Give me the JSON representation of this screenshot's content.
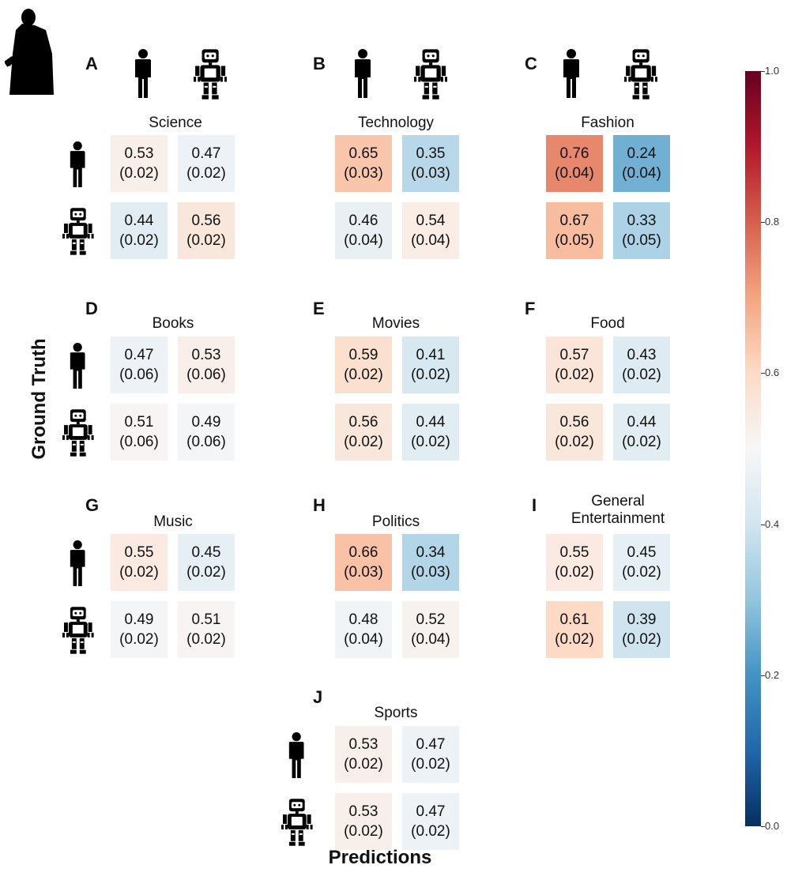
{
  "chart_data": {
    "type": "heatmap",
    "ylabel": "Ground Truth",
    "xlabel": "Predictions",
    "row_labels": [
      "human-icon",
      "robot-icon"
    ],
    "col_labels": [
      "human-icon",
      "robot-icon"
    ],
    "colorbar": {
      "colormap": "RdBu_r",
      "range": [
        0.0,
        1.0
      ],
      "ticks": [
        "0.0",
        "0.2",
        "0.4",
        "0.6",
        "0.8",
        "1.0"
      ]
    },
    "panels": [
      {
        "letter": "A",
        "title": "Science",
        "values": [
          [
            0.53,
            0.47
          ],
          [
            0.44,
            0.56
          ]
        ],
        "labels": [
          [
            "0.53",
            "0.47"
          ],
          [
            "0.44",
            "0.56"
          ]
        ],
        "errors": [
          [
            "(0.02)",
            "(0.02)"
          ],
          [
            "(0.02)",
            "(0.02)"
          ]
        ]
      },
      {
        "letter": "B",
        "title": "Technology",
        "values": [
          [
            0.65,
            0.35
          ],
          [
            0.46,
            0.54
          ]
        ],
        "labels": [
          [
            "0.65",
            "0.35"
          ],
          [
            "0.46",
            "0.54"
          ]
        ],
        "errors": [
          [
            "(0.03)",
            "(0.03)"
          ],
          [
            "(0.04)",
            "(0.04)"
          ]
        ]
      },
      {
        "letter": "C",
        "title": "Fashion",
        "values": [
          [
            0.76,
            0.24
          ],
          [
            0.67,
            0.33
          ]
        ],
        "labels": [
          [
            "0.76",
            "0.24"
          ],
          [
            "0.67",
            "0.33"
          ]
        ],
        "errors": [
          [
            "(0.04)",
            "(0.04)"
          ],
          [
            "(0.05)",
            "(0.05)"
          ]
        ]
      },
      {
        "letter": "D",
        "title": "Books",
        "values": [
          [
            0.47,
            0.53
          ],
          [
            0.51,
            0.49
          ]
        ],
        "labels": [
          [
            "0.47",
            "0.53"
          ],
          [
            "0.51",
            "0.49"
          ]
        ],
        "errors": [
          [
            "(0.06)",
            "(0.06)"
          ],
          [
            "(0.06)",
            "(0.06)"
          ]
        ]
      },
      {
        "letter": "E",
        "title": "Movies",
        "values": [
          [
            0.59,
            0.41
          ],
          [
            0.56,
            0.44
          ]
        ],
        "labels": [
          [
            "0.59",
            "0.41"
          ],
          [
            "0.56",
            "0.44"
          ]
        ],
        "errors": [
          [
            "(0.02)",
            "(0.02)"
          ],
          [
            "(0.02)",
            "(0.02)"
          ]
        ]
      },
      {
        "letter": "F",
        "title": "Food",
        "values": [
          [
            0.57,
            0.43
          ],
          [
            0.56,
            0.44
          ]
        ],
        "labels": [
          [
            "0.57",
            "0.43"
          ],
          [
            "0.56",
            "0.44"
          ]
        ],
        "errors": [
          [
            "(0.02)",
            "(0.02)"
          ],
          [
            "(0.02)",
            "(0.02)"
          ]
        ]
      },
      {
        "letter": "G",
        "title": "Music",
        "values": [
          [
            0.55,
            0.45
          ],
          [
            0.49,
            0.51
          ]
        ],
        "labels": [
          [
            "0.55",
            "0.45"
          ],
          [
            "0.49",
            "0.51"
          ]
        ],
        "errors": [
          [
            "(0.02)",
            "(0.02)"
          ],
          [
            "(0.02)",
            "(0.02)"
          ]
        ]
      },
      {
        "letter": "H",
        "title": "Politics",
        "values": [
          [
            0.66,
            0.34
          ],
          [
            0.48,
            0.52
          ]
        ],
        "labels": [
          [
            "0.66",
            "0.34"
          ],
          [
            "0.48",
            "0.52"
          ]
        ],
        "errors": [
          [
            "(0.03)",
            "(0.03)"
          ],
          [
            "(0.04)",
            "(0.04)"
          ]
        ]
      },
      {
        "letter": "I",
        "title": "General Entertainment",
        "values": [
          [
            0.55,
            0.45
          ],
          [
            0.61,
            0.39
          ]
        ],
        "labels": [
          [
            "0.55",
            "0.45"
          ],
          [
            "0.61",
            "0.39"
          ]
        ],
        "errors": [
          [
            "(0.02)",
            "(0.02)"
          ],
          [
            "(0.02)",
            "(0.02)"
          ]
        ]
      },
      {
        "letter": "J",
        "title": "Sports",
        "values": [
          [
            0.53,
            0.47
          ],
          [
            0.53,
            0.47
          ]
        ],
        "labels": [
          [
            "0.53",
            "0.47"
          ],
          [
            "0.53",
            "0.47"
          ]
        ],
        "errors": [
          [
            "(0.02)",
            "(0.02)"
          ],
          [
            "(0.02)",
            "(0.02)"
          ]
        ]
      }
    ]
  }
}
